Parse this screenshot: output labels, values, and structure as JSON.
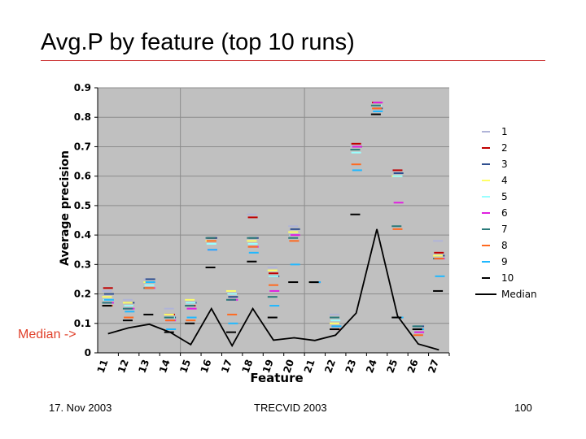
{
  "slide": {
    "title": "Avg.P by feature (top 10 runs)",
    "median_note": "Median ->",
    "footer_date": "17. Nov 2003",
    "footer_center": "TRECVID 2003",
    "page_number": "100"
  },
  "chart_data": {
    "type": "scatter",
    "title": "",
    "xlabel": "Feature",
    "ylabel": "Average precision",
    "ylim": [
      0,
      0.9
    ],
    "yticks": [
      0,
      0.1,
      0.2,
      0.3,
      0.4,
      0.5,
      0.6,
      0.7,
      0.8,
      0.9
    ],
    "ytick_labels": [
      "0",
      "0.1",
      "0.2",
      "0.3",
      "0.4",
      "0.5",
      "0.6",
      "0.7",
      "0.8",
      "0.9"
    ],
    "categories": [
      "11",
      "12",
      "13",
      "14",
      "15",
      "16",
      "17",
      "18",
      "19",
      "20",
      "21",
      "22",
      "23",
      "24",
      "25",
      "26",
      "27"
    ],
    "grid": true,
    "plot_background": "#c0c0c0",
    "legend_position": "right",
    "series": [
      {
        "name": "1",
        "color": "#b0b4d8",
        "values": [
          0.21,
          0.18,
          0.25,
          0.15,
          0.18,
          0.39,
          0.21,
          0.47,
          0.29,
          0.43,
          0.24,
          0.13,
          0.7,
          0.84,
          0.62,
          0.09,
          0.38
        ]
      },
      {
        "name": "2",
        "color": "#c00000",
        "values": [
          0.22,
          0.16,
          0.24,
          0.13,
          0.16,
          0.39,
          0.2,
          0.46,
          0.27,
          0.4,
          0.24,
          0.08,
          0.71,
          0.85,
          0.62,
          0.08,
          0.34
        ]
      },
      {
        "name": "3",
        "color": "#2f4f8f",
        "values": [
          0.2,
          0.17,
          0.25,
          0.12,
          0.17,
          0.39,
          0.19,
          0.39,
          0.26,
          0.42,
          0.24,
          0.09,
          0.7,
          0.83,
          0.61,
          0.09,
          0.33
        ]
      },
      {
        "name": "4",
        "color": "#ffff66",
        "values": [
          0.19,
          0.17,
          0.24,
          0.13,
          0.18,
          0.38,
          0.21,
          0.38,
          0.28,
          0.41,
          0.24,
          0.1,
          0.69,
          0.84,
          0.6,
          0.08,
          0.33
        ]
      },
      {
        "name": "5",
        "color": "#99ffff",
        "values": [
          0.18,
          0.16,
          0.23,
          0.12,
          0.17,
          0.37,
          0.2,
          0.37,
          0.26,
          0.4,
          0.24,
          0.11,
          0.68,
          0.84,
          0.6,
          0.08,
          0.32
        ]
      },
      {
        "name": "6",
        "color": "#e020e0",
        "values": [
          0.17,
          0.15,
          0.22,
          0.11,
          0.15,
          0.35,
          0.18,
          0.36,
          0.21,
          0.4,
          0.24,
          0.08,
          0.7,
          0.85,
          0.51,
          0.07,
          0.32
        ]
      },
      {
        "name": "7",
        "color": "#2a7a7a",
        "values": [
          0.17,
          0.15,
          0.22,
          0.12,
          0.16,
          0.39,
          0.18,
          0.39,
          0.19,
          0.39,
          0.24,
          0.12,
          0.69,
          0.84,
          0.43,
          0.09,
          0.32
        ]
      },
      {
        "name": "8",
        "color": "#ff6a20",
        "values": [
          0.16,
          0.12,
          0.22,
          0.11,
          0.11,
          0.38,
          0.13,
          0.36,
          0.23,
          0.38,
          0.24,
          0.08,
          0.64,
          0.83,
          0.42,
          0.06,
          0.32
        ]
      },
      {
        "name": "9",
        "color": "#20b8ff",
        "values": [
          0.18,
          0.14,
          0.24,
          0.08,
          0.12,
          0.35,
          0.1,
          0.34,
          0.16,
          0.3,
          0.24,
          0.09,
          0.62,
          0.82,
          0.12,
          0.08,
          0.26
        ]
      },
      {
        "name": "10",
        "color": "#000000",
        "values": [
          0.16,
          0.11,
          0.13,
          0.07,
          0.1,
          0.29,
          0.07,
          0.31,
          0.12,
          0.24,
          0.24,
          0.08,
          0.47,
          0.81,
          0.12,
          0.08,
          0.21
        ]
      }
    ],
    "median": {
      "name": "Median",
      "color": "#000000",
      "values": [
        0.065,
        0.085,
        0.097,
        0.07,
        0.028,
        0.15,
        0.024,
        0.15,
        0.043,
        0.051,
        0.042,
        0.06,
        0.135,
        0.42,
        0.125,
        0.03,
        0.01
      ]
    }
  }
}
